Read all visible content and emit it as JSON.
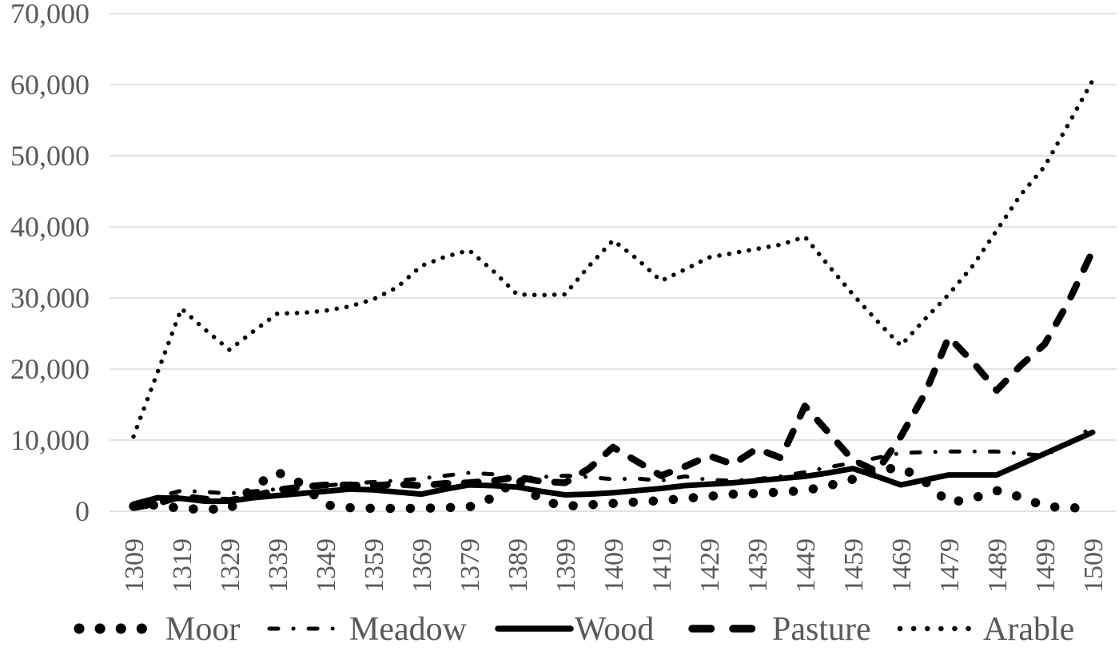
{
  "chart_data": {
    "type": "line",
    "title": "",
    "xlabel": "",
    "ylabel": "",
    "grid": "horizontal-only",
    "legend_position": "bottom",
    "background_color": "#ffffff",
    "gridline_color": "#d9d9d9",
    "axis_label_color": "#595959",
    "line_color": "#000000",
    "ylim": [
      0,
      70000
    ],
    "yticks": [
      0,
      10000,
      20000,
      30000,
      40000,
      50000,
      60000,
      70000
    ],
    "ytick_labels": [
      "0",
      "10,000",
      "20,000",
      "30,000",
      "40,000",
      "50,000",
      "60,000",
      "70,000"
    ],
    "xtick_labels": [
      "1309",
      "1319",
      "1329",
      "1339",
      "1349",
      "1359",
      "1369",
      "1379",
      "1389",
      "1399",
      "1409",
      "1419",
      "1429",
      "1439",
      "1449",
      "1459",
      "1469",
      "1479",
      "1489",
      "1499",
      "1509"
    ],
    "x": [
      1309,
      1314,
      1319,
      1324,
      1329,
      1334,
      1339,
      1344,
      1349,
      1354,
      1359,
      1364,
      1369,
      1374,
      1379,
      1384,
      1389,
      1394,
      1399,
      1404,
      1409,
      1414,
      1419,
      1424,
      1429,
      1434,
      1439,
      1444,
      1449,
      1454,
      1459,
      1464,
      1469,
      1474,
      1479,
      1484,
      1489,
      1494,
      1499,
      1504,
      1509
    ],
    "series": [
      {
        "name": "Moor",
        "line_style": "big-dots",
        "values": [
          700,
          900,
          350,
          300,
          300,
          3400,
          5500,
          3900,
          900,
          500,
          400,
          400,
          400,
          500,
          600,
          1900,
          4600,
          1500,
          700,
          900,
          1100,
          1300,
          1500,
          1800,
          2100,
          2400,
          2500,
          2700,
          2900,
          3600,
          4500,
          5700,
          6200,
          4200,
          1200,
          1800,
          2900,
          2000,
          700,
          450,
          550
        ]
      },
      {
        "name": "Meadow",
        "line_style": "dash-dot",
        "values": [
          900,
          2000,
          2900,
          2700,
          2500,
          2800,
          3100,
          3500,
          3600,
          3900,
          4100,
          4300,
          4600,
          5000,
          5400,
          5200,
          4600,
          4800,
          5000,
          4800,
          4500,
          4600,
          4300,
          4900,
          4400,
          4300,
          4500,
          4900,
          5500,
          6200,
          6800,
          7500,
          8200,
          8300,
          8400,
          8400,
          8400,
          8100,
          7800,
          9600,
          11900
        ]
      },
      {
        "name": "Wood",
        "line_style": "solid",
        "values": [
          1000,
          1900,
          1800,
          1400,
          1400,
          1900,
          2200,
          2500,
          2800,
          3100,
          3000,
          2700,
          2400,
          3100,
          3700,
          3600,
          3400,
          2800,
          2300,
          2400,
          2600,
          2900,
          3200,
          3600,
          3800,
          4000,
          4300,
          4600,
          4900,
          5400,
          6000,
          4900,
          3700,
          4400,
          5100,
          5100,
          5100,
          6600,
          8100,
          9600,
          11100
        ]
      },
      {
        "name": "Pasture",
        "line_style": "long-dash",
        "values": [
          500,
          1100,
          2100,
          1700,
          1500,
          2100,
          3000,
          3400,
          3700,
          3700,
          3600,
          3800,
          3600,
          3900,
          4000,
          4300,
          4800,
          4200,
          4000,
          6000,
          9000,
          7000,
          5000,
          6300,
          7800,
          6600,
          8800,
          7500,
          14800,
          11000,
          7200,
          5600,
          10500,
          16500,
          24500,
          21000,
          17000,
          20500,
          23500,
          29500,
          36600
        ]
      },
      {
        "name": "Arable",
        "line_style": "fine-dots",
        "values": [
          10500,
          19500,
          28500,
          25500,
          22700,
          25300,
          27800,
          27900,
          28200,
          28800,
          29800,
          31500,
          34500,
          35800,
          36700,
          33800,
          30500,
          30400,
          30500,
          34500,
          38100,
          35500,
          32400,
          34000,
          35700,
          36300,
          36900,
          37500,
          38600,
          34500,
          30500,
          26800,
          23300,
          27000,
          30500,
          34500,
          39500,
          44500,
          48500,
          54500,
          60600
        ]
      }
    ]
  }
}
